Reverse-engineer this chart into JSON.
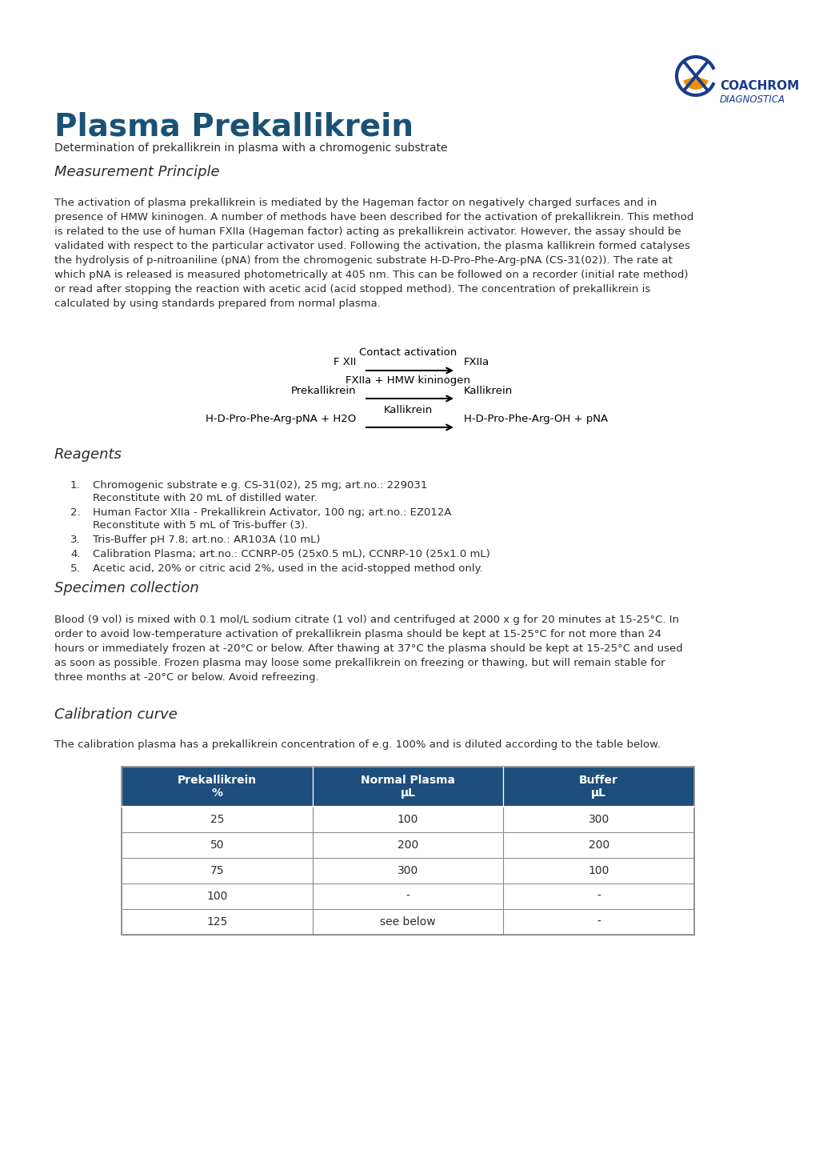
{
  "title": "Plasma Prekallikrein",
  "subtitle": "Determination of prekallikrein in plasma with a chromogenic substrate",
  "bg_color": "#ffffff",
  "title_color": "#1a5276",
  "text_color": "#2c2c2c",
  "section1_title": "Measurement Principle",
  "section1_text": "The activation of plasma prekallikrein is mediated by the Hageman factor on negatively charged surfaces and in\npresence of HMW kininogen. A number of methods have been described for the activation of prekallikrein. This method\nis related to the use of human FXIIa (Hageman factor) acting as prekallikrein activator. However, the assay should be\nvalidated with respect to the particular activator used. Following the activation, the plasma kallikrein formed catalyses\nthe hydrolysis of p-nitroaniline (pNA) from the chromogenic substrate H-D-Pro-Phe-Arg-pNA (CS-31(02)). The rate at\nwhich pNA is released is measured photometrically at 405 nm. This can be followed on a recorder (initial rate method)\nor read after stopping the reaction with acetic acid (acid stopped method). The concentration of prekallikrein is\ncalculated by using standards prepared from normal plasma.",
  "section2_title": "Reagents",
  "reagents_line1": [
    "Chromogenic substrate e.g. CS-31(02), 25 mg; art.no.: 229031",
    "Human Factor XIIa - Prekallikrein Activator, 100 ng; art.no.: EZ012A",
    "Tris-Buffer pH 7.8; art.no.: AR103A (10 mL)",
    "Calibration Plasma; art.no.: CCNRP-05 (25x0.5 mL), CCNRP-10 (25x1.0 mL)",
    "Acetic acid, 20% or citric acid 2%, used in the acid-stopped method only."
  ],
  "reagents_line2": [
    "Reconstitute with 20 mL of distilled water.",
    "Reconstitute with 5 mL of Tris-buffer (3).",
    "",
    "",
    ""
  ],
  "section3_title": "Specimen collection",
  "section3_text": "Blood (9 vol) is mixed with 0.1 mol/L sodium citrate (1 vol) and centrifuged at 2000 x g for 20 minutes at 15-25°C. In\norder to avoid low-temperature activation of prekallikrein plasma should be kept at 15-25°C for not more than 24\nhours or immediately frozen at -20°C or below. After thawing at 37°C the plasma should be kept at 15-25°C and used\nas soon as possible. Frozen plasma may loose some prekallikrein on freezing or thawing, but will remain stable for\nthree months at -20°C or below. Avoid refreezing.",
  "section4_title": "Calibration curve",
  "section4_intro": "The calibration plasma has a prekallikrein concentration of e.g. 100% and is diluted according to the table below.",
  "table_header_bg": "#1d4e7c",
  "table_header_text": "#ffffff",
  "table_border": "#888888",
  "table_headers": [
    "Prekallikrein\n%",
    "Normal Plasma\nμL",
    "Buffer\nμL"
  ],
  "table_data": [
    [
      "25",
      "100",
      "300"
    ],
    [
      "50",
      "200",
      "200"
    ],
    [
      "75",
      "300",
      "100"
    ],
    [
      "100",
      "-",
      "-"
    ],
    [
      "125",
      "see below",
      "-"
    ]
  ],
  "logo_blue": "#1a3a8c",
  "logo_orange": "#e8920a",
  "reaction_text_color": "#000000",
  "arrow_color": "#000000"
}
